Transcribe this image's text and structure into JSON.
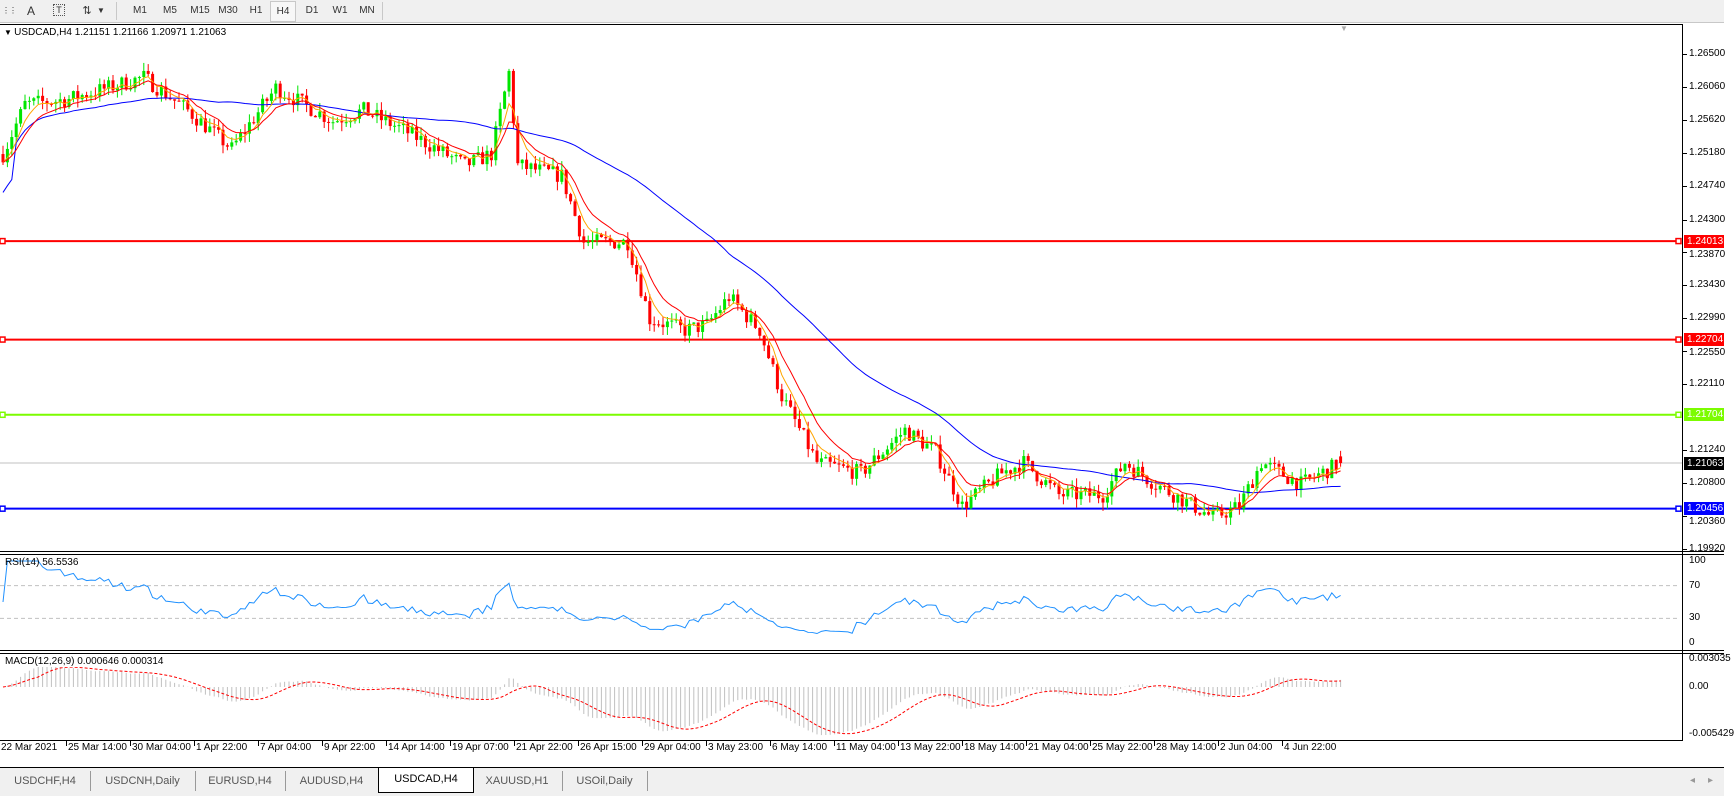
{
  "toolbar": {
    "icons": [
      "grid-icon",
      "text-a-icon",
      "text-label-icon",
      "arrows-icon",
      "dropdown-icon"
    ],
    "text_a": "A",
    "timeframes": [
      "M1",
      "M5",
      "M15",
      "M30",
      "H1",
      "H4",
      "D1",
      "W1",
      "MN"
    ],
    "active_timeframe": "H4"
  },
  "chart": {
    "header": "USDCAD,H4  1.21151 1.21166 1.20971 1.21063",
    "symbol": "USDCAD",
    "period": "H4",
    "ohlc": {
      "open": 1.21151,
      "high": 1.21166,
      "low": 1.20971,
      "close": 1.21063
    },
    "price_ticks": [
      "1.26500",
      "1.26060",
      "1.25620",
      "1.25180",
      "1.24740",
      "1.24300",
      "1.23870",
      "1.23430",
      "1.22990",
      "1.22550",
      "1.22110",
      "1.21240",
      "1.20800",
      "1.20360",
      "1.19920"
    ],
    "current_price": "1.21063",
    "horizontal_lines": [
      {
        "price": "1.24013",
        "color": "#ff0000"
      },
      {
        "price": "1.22704",
        "color": "#ff0000"
      },
      {
        "price": "1.21704",
        "color": "#7cfc00"
      },
      {
        "price": "1.20456",
        "color": "#0000ff"
      }
    ],
    "colors": {
      "bull": "#00e600",
      "bear": "#ff0000",
      "ma_fast": "#ff0000",
      "ma_slow": "#0000ff",
      "ma_short": "#ffa500",
      "rsi": "#1e90ff",
      "macd_hist": "#c0c0c0",
      "macd_signal": "#ff0000"
    },
    "price_path": [
      [
        0,
        1.2517
      ],
      [
        5,
        1.2583
      ],
      [
        15,
        1.259
      ],
      [
        32,
        1.2619
      ],
      [
        42,
        1.2575
      ],
      [
        52,
        1.2524
      ],
      [
        62,
        1.2605
      ],
      [
        75,
        1.2561
      ],
      [
        82,
        1.2575
      ],
      [
        92,
        1.2546
      ],
      [
        105,
        1.2502
      ],
      [
        111,
        1.2517
      ],
      [
        115,
        1.2625
      ],
      [
        117,
        1.2502
      ],
      [
        127,
        1.2488
      ],
      [
        132,
        1.24
      ],
      [
        142,
        1.24
      ],
      [
        147,
        1.2298
      ],
      [
        155,
        1.2283
      ],
      [
        160,
        1.229
      ],
      [
        165,
        1.2327
      ],
      [
        172,
        1.2283
      ],
      [
        177,
        1.2195
      ],
      [
        185,
        1.2107
      ],
      [
        195,
        1.2093
      ],
      [
        205,
        1.215
      ],
      [
        212,
        1.2121
      ],
      [
        218,
        1.2049
      ],
      [
        227,
        1.2093
      ],
      [
        232,
        1.2107
      ],
      [
        240,
        1.2064
      ],
      [
        250,
        1.2064
      ],
      [
        255,
        1.2107
      ],
      [
        262,
        1.2078
      ],
      [
        275,
        1.2034
      ],
      [
        281,
        1.2049
      ],
      [
        286,
        1.2107
      ],
      [
        295,
        1.2078
      ],
      [
        304,
        1.21063
      ]
    ],
    "dates": [
      "22 Mar 2021",
      "25 Mar 14:00",
      "30 Mar 04:00",
      "1 Apr 22:00",
      "7 Apr 04:00",
      "9 Apr 22:00",
      "14 Apr 14:00",
      "19 Apr 07:00",
      "21 Apr 22:00",
      "26 Apr 15:00",
      "29 Apr 04:00",
      "3 May 23:00",
      "6 May 14:00",
      "11 May 04:00",
      "13 May 22:00",
      "18 May 14:00",
      "21 May 04:00",
      "25 May 22:00",
      "28 May 14:00",
      "2 Jun 04:00",
      "4 Jun 22:00"
    ]
  },
  "rsi": {
    "label": "RSI(14) 56.5536",
    "ticks": [
      "100",
      "70",
      "30",
      "0"
    ]
  },
  "macd": {
    "label": "MACD(12,26,9) 0.000646 0.000314",
    "ticks": [
      "0.003035",
      "0.00",
      "-0.005429"
    ]
  },
  "tabs": [
    {
      "label": "USDCHF,H4"
    },
    {
      "label": "USDCNH,Daily"
    },
    {
      "label": "EURUSD,H4"
    },
    {
      "label": "AUDUSD,H4"
    },
    {
      "label": "USDCAD,H4",
      "active": true
    },
    {
      "label": "XAUUSD,H1"
    },
    {
      "label": "USOil,Daily"
    }
  ]
}
